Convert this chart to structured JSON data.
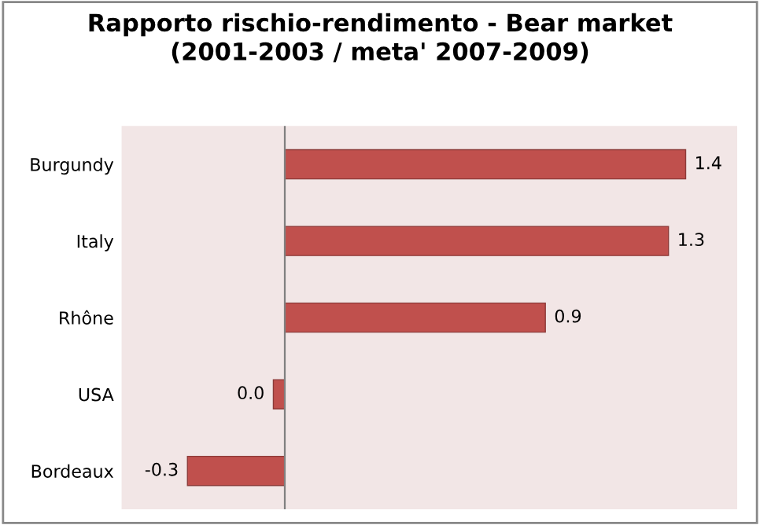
{
  "chart_data": {
    "type": "bar",
    "orientation": "horizontal",
    "title": "Rapporto rischio-rendimento - Bear market\n(2001-2003 / meta' 2007-2009)",
    "categories": [
      "Burgundy",
      "Italy",
      "Rhône",
      "USA",
      "Bordeaux"
    ],
    "values": [
      1.4,
      1.34,
      0.91,
      -0.04,
      -0.34
    ],
    "value_labels": [
      "1.4",
      "1.3",
      "0.9",
      "0.0",
      "-0.3"
    ],
    "color": "#c0504d",
    "xlim": [
      -0.57,
      1.58
    ],
    "tick_labels": "y",
    "grid": false,
    "legend": false
  }
}
